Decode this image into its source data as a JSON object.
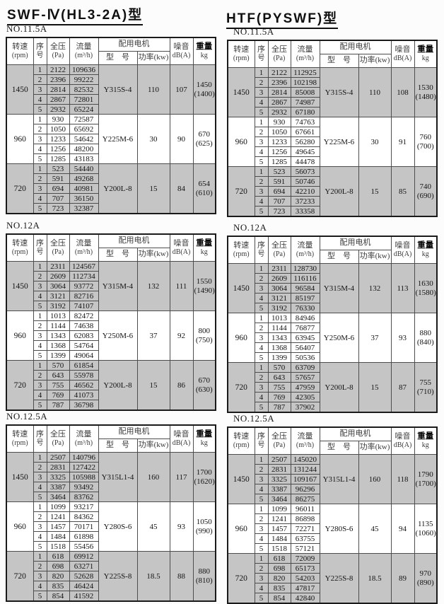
{
  "titles": {
    "left": "SWF-Ⅳ(HL3-2A)型",
    "right": "HTF(PYSWF)型"
  },
  "colors": {
    "row_shading": "#c5c5c5"
  },
  "header": {
    "speed": "转速",
    "speed_unit": "(rpm)",
    "seq_top": "序",
    "seq_bottom": "号",
    "pressure": "全压",
    "pressure_unit": "(Pa)",
    "flow": "流量",
    "flow_unit": "(m³/h)",
    "motor_group": "配用电机",
    "model": "型　号",
    "power": "功率(kw)",
    "noise": "噪音",
    "noise_unit": "dB(A)",
    "weight": "重量",
    "weight_unit": "kg"
  },
  "tables": [
    {
      "label": "NO.11.5A",
      "groups": [
        {
          "rpm": "1450",
          "shaded": true,
          "rows": [
            [
              "1",
              "2122",
              "109636"
            ],
            [
              "2",
              "2396",
              "99222"
            ],
            [
              "3",
              "2814",
              "82532"
            ],
            [
              "4",
              "2867",
              "72801"
            ],
            [
              "5",
              "2932",
              "65224"
            ]
          ],
          "model": "Y315S-4",
          "power": "110",
          "noise": "107",
          "weight": "1450",
          "weight_alt": "(1400)"
        },
        {
          "rpm": "960",
          "shaded": false,
          "rows": [
            [
              "1",
              "930",
              "72587"
            ],
            [
              "2",
              "1050",
              "65692"
            ],
            [
              "3",
              "1233",
              "54642"
            ],
            [
              "4",
              "1256",
              "48200"
            ],
            [
              "5",
              "1285",
              "43183"
            ]
          ],
          "model": "Y225M-6",
          "power": "30",
          "noise": "90",
          "weight": "670",
          "weight_alt": "(625)"
        },
        {
          "rpm": "720",
          "shaded": true,
          "rows": [
            [
              "1",
              "523",
              "54440"
            ],
            [
              "2",
              "591",
              "49268"
            ],
            [
              "3",
              "694",
              "40981"
            ],
            [
              "4",
              "707",
              "36150"
            ],
            [
              "5",
              "723",
              "32387"
            ]
          ],
          "model": "Y200L-8",
          "power": "15",
          "noise": "84",
          "weight": "654",
          "weight_alt": "(610)"
        }
      ]
    },
    {
      "label": "NO.11.5A",
      "groups": [
        {
          "rpm": "1450",
          "shaded": true,
          "rows": [
            [
              "1",
              "2122",
              "112925"
            ],
            [
              "2",
              "2396",
              "102198"
            ],
            [
              "3",
              "2814",
              "85008"
            ],
            [
              "4",
              "2867",
              "74987"
            ],
            [
              "5",
              "2932",
              "67180"
            ]
          ],
          "model": "Y315S-4",
          "power": "110",
          "noise": "108",
          "weight": "1530",
          "weight_alt": "(1480)"
        },
        {
          "rpm": "960",
          "shaded": false,
          "rows": [
            [
              "1",
              "930",
              "74763"
            ],
            [
              "2",
              "1050",
              "67661"
            ],
            [
              "3",
              "1233",
              "56280"
            ],
            [
              "4",
              "1256",
              "49645"
            ],
            [
              "5",
              "1285",
              "44478"
            ]
          ],
          "model": "Y225M-6",
          "power": "30",
          "noise": "91",
          "weight": "760",
          "weight_alt": "(700)"
        },
        {
          "rpm": "720",
          "shaded": true,
          "rows": [
            [
              "1",
              "523",
              "56073"
            ],
            [
              "2",
              "591",
              "50746"
            ],
            [
              "3",
              "694",
              "42210"
            ],
            [
              "4",
              "707",
              "37233"
            ],
            [
              "5",
              "723",
              "33358"
            ]
          ],
          "model": "Y200L-8",
          "power": "15",
          "noise": "85",
          "weight": "740",
          "weight_alt": "(690)"
        }
      ]
    },
    {
      "label": "NO.12A",
      "groups": [
        {
          "rpm": "1450",
          "shaded": true,
          "rows": [
            [
              "1",
              "2311",
              "124567"
            ],
            [
              "2",
              "2609",
              "112734"
            ],
            [
              "3",
              "3064",
              "93772"
            ],
            [
              "4",
              "3121",
              "82716"
            ],
            [
              "5",
              "3192",
              "74107"
            ]
          ],
          "model": "Y315M-4",
          "power": "132",
          "noise": "111",
          "weight": "1550",
          "weight_alt": "(1490)"
        },
        {
          "rpm": "960",
          "shaded": false,
          "rows": [
            [
              "1",
              "1013",
              "82472"
            ],
            [
              "2",
              "1144",
              "74638"
            ],
            [
              "3",
              "1343",
              "62083"
            ],
            [
              "4",
              "1368",
              "54764"
            ],
            [
              "5",
              "1399",
              "49064"
            ]
          ],
          "model": "Y250M-6",
          "power": "37",
          "noise": "92",
          "weight": "800",
          "weight_alt": "(750)"
        },
        {
          "rpm": "720",
          "shaded": true,
          "rows": [
            [
              "1",
              "570",
              "61854"
            ],
            [
              "2",
              "643",
              "55978"
            ],
            [
              "3",
              "755",
              "46562"
            ],
            [
              "4",
              "769",
              "41073"
            ],
            [
              "5",
              "787",
              "36798"
            ]
          ],
          "model": "Y200L-8",
          "power": "15",
          "noise": "86",
          "weight": "670",
          "weight_alt": "(630)"
        }
      ]
    },
    {
      "label": "NO.12A",
      "groups": [
        {
          "rpm": "1450",
          "shaded": true,
          "rows": [
            [
              "1",
              "2311",
              "128730"
            ],
            [
              "2",
              "2609",
              "116116"
            ],
            [
              "3",
              "3064",
              "96584"
            ],
            [
              "4",
              "3121",
              "85197"
            ],
            [
              "5",
              "3192",
              "76330"
            ]
          ],
          "model": "Y315M-4",
          "power": "132",
          "noise": "113",
          "weight": "1630",
          "weight_alt": "(1580)"
        },
        {
          "rpm": "960",
          "shaded": false,
          "rows": [
            [
              "1",
              "1013",
              "84946"
            ],
            [
              "2",
              "1144",
              "76877"
            ],
            [
              "3",
              "1343",
              "63945"
            ],
            [
              "4",
              "1368",
              "56407"
            ],
            [
              "5",
              "1399",
              "50536"
            ]
          ],
          "model": "Y250M-6",
          "power": "37",
          "noise": "93",
          "weight": "880",
          "weight_alt": "(840)"
        },
        {
          "rpm": "720",
          "shaded": true,
          "rows": [
            [
              "1",
              "570",
              "63709"
            ],
            [
              "2",
              "643",
              "57657"
            ],
            [
              "3",
              "755",
              "47959"
            ],
            [
              "4",
              "769",
              "42305"
            ],
            [
              "5",
              "787",
              "37902"
            ]
          ],
          "model": "Y200L-8",
          "power": "15",
          "noise": "87",
          "weight": "755",
          "weight_alt": "(710)"
        }
      ]
    },
    {
      "label": "NO.12.5A",
      "groups": [
        {
          "rpm": "1450",
          "shaded": true,
          "rows": [
            [
              "1",
              "2507",
              "140796"
            ],
            [
              "2",
              "2831",
              "127422"
            ],
            [
              "3",
              "3325",
              "105988"
            ],
            [
              "4",
              "3387",
              "93492"
            ],
            [
              "5",
              "3464",
              "83762"
            ]
          ],
          "model": "Y315L1-4",
          "power": "160",
          "noise": "117",
          "weight": "1700",
          "weight_alt": "(1620)"
        },
        {
          "rpm": "960",
          "shaded": false,
          "rows": [
            [
              "1",
              "1099",
              "93217"
            ],
            [
              "2",
              "1241",
              "84362"
            ],
            [
              "3",
              "1457",
              "70171"
            ],
            [
              "4",
              "1484",
              "61898"
            ],
            [
              "5",
              "1518",
              "55456"
            ]
          ],
          "model": "Y280S-6",
          "power": "45",
          "noise": "93",
          "weight": "1050",
          "weight_alt": "(990)"
        },
        {
          "rpm": "720",
          "shaded": true,
          "rows": [
            [
              "1",
              "618",
              "69912"
            ],
            [
              "2",
              "698",
              "63271"
            ],
            [
              "3",
              "820",
              "52628"
            ],
            [
              "4",
              "835",
              "46424"
            ],
            [
              "5",
              "854",
              "41592"
            ]
          ],
          "model": "Y225S-8",
          "power": "18.5",
          "noise": "88",
          "weight": "880",
          "weight_alt": "(810)"
        }
      ]
    },
    {
      "label": "NO.12.5A",
      "groups": [
        {
          "rpm": "1450",
          "shaded": true,
          "rows": [
            [
              "1",
              "2507",
              "145020"
            ],
            [
              "2",
              "2831",
              "131244"
            ],
            [
              "3",
              "3325",
              "109167"
            ],
            [
              "4",
              "3387",
              "96296"
            ],
            [
              "5",
              "3464",
              "86275"
            ]
          ],
          "model": "Y315L1-4",
          "power": "160",
          "noise": "118",
          "weight": "1790",
          "weight_alt": "(1700)"
        },
        {
          "rpm": "960",
          "shaded": false,
          "rows": [
            [
              "1",
              "1099",
              "96011"
            ],
            [
              "2",
              "1241",
              "86898"
            ],
            [
              "3",
              "1457",
              "72271"
            ],
            [
              "4",
              "1484",
              "63755"
            ],
            [
              "5",
              "1518",
              "57121"
            ]
          ],
          "model": "Y280S-6",
          "power": "45",
          "noise": "94",
          "weight": "1135",
          "weight_alt": "(1060)"
        },
        {
          "rpm": "720",
          "shaded": true,
          "rows": [
            [
              "1",
              "618",
              "72009"
            ],
            [
              "2",
              "698",
              "65173"
            ],
            [
              "3",
              "820",
              "54203"
            ],
            [
              "4",
              "835",
              "47817"
            ],
            [
              "5",
              "854",
              "42840"
            ]
          ],
          "model": "Y225S-8",
          "power": "18.5",
          "noise": "89",
          "weight": "970",
          "weight_alt": "(890)"
        }
      ]
    }
  ]
}
